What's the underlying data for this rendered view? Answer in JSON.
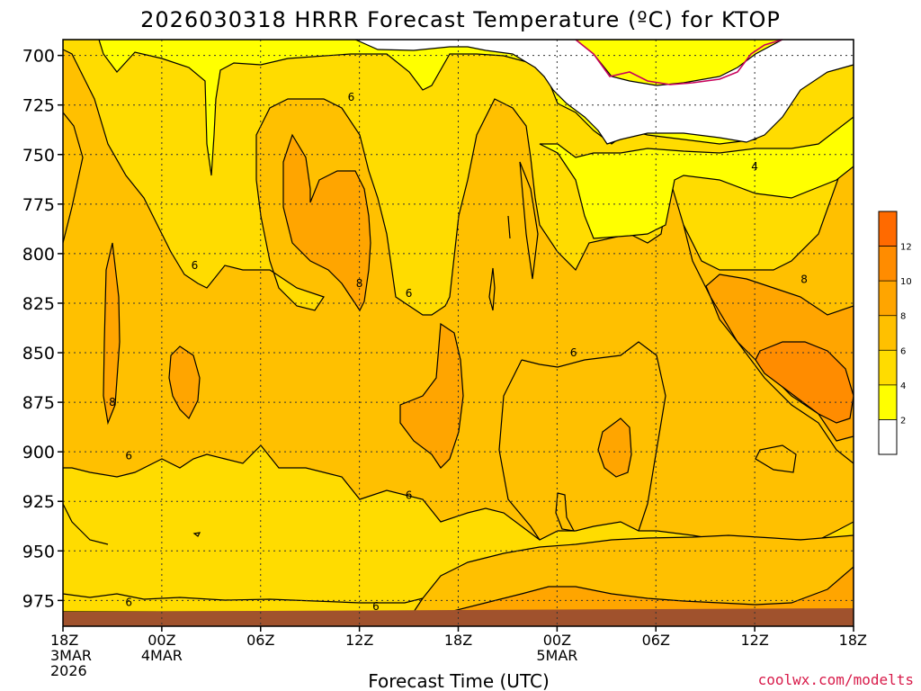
{
  "chart_data": {
    "type": "heatmap",
    "title": "2026030318 HRRR Forecast Temperature (ºC) for KTOP",
    "xlabel": "Forecast Time (UTC)",
    "ylabel": "",
    "credit": "coolwx.com/modelts",
    "x_ticks": [
      {
        "hour": 0,
        "lines": [
          "18Z",
          "3MAR",
          "2026"
        ]
      },
      {
        "hour": 6,
        "lines": [
          "00Z",
          "4MAR"
        ]
      },
      {
        "hour": 12,
        "lines": [
          "06Z"
        ]
      },
      {
        "hour": 18,
        "lines": [
          "12Z"
        ]
      },
      {
        "hour": 24,
        "lines": [
          "18Z"
        ]
      },
      {
        "hour": 30,
        "lines": [
          "00Z",
          "5MAR"
        ]
      },
      {
        "hour": 36,
        "lines": [
          "06Z"
        ]
      },
      {
        "hour": 42,
        "lines": [
          "12Z"
        ]
      },
      {
        "hour": 48,
        "lines": [
          "18Z"
        ]
      }
    ],
    "xlim": [
      0,
      48
    ],
    "y_ticks": [
      700,
      725,
      750,
      775,
      800,
      825,
      850,
      875,
      900,
      925,
      950,
      975
    ],
    "ylim": [
      692,
      988
    ],
    "surface_pressure": 978,
    "contour_interval": 2,
    "legend": {
      "levels": [
        2,
        4,
        6,
        8,
        10,
        12
      ],
      "colors": [
        "#ffffff",
        "#ffff00",
        "#ffdc00",
        "#ffc000",
        "#ffa500",
        "#ff8c00",
        "#ff6a00"
      ]
    },
    "contour_labels": [
      {
        "text": "6",
        "hour": 17.5,
        "p": 721
      },
      {
        "text": "4",
        "hour": 42.0,
        "p": 756
      },
      {
        "text": "6",
        "hour": 8.0,
        "p": 806
      },
      {
        "text": "8",
        "hour": 18.0,
        "p": 815
      },
      {
        "text": "6",
        "hour": 21.0,
        "p": 820
      },
      {
        "text": "8",
        "hour": 45.0,
        "p": 813
      },
      {
        "text": "6",
        "hour": 31.0,
        "p": 850
      },
      {
        "text": "8",
        "hour": 3.0,
        "p": 875
      },
      {
        "text": "6",
        "hour": 4.0,
        "p": 902
      },
      {
        "text": "6",
        "hour": 21.0,
        "p": 922
      },
      {
        "text": "6",
        "hour": 4.0,
        "p": 976
      },
      {
        "text": "6",
        "hour": 19.0,
        "p": 978
      }
    ],
    "grid": true
  }
}
